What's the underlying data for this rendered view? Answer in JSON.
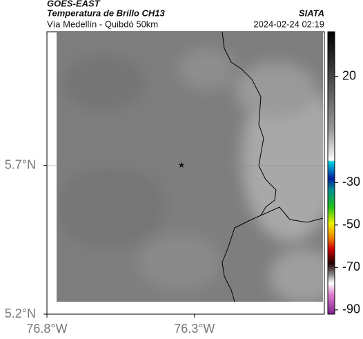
{
  "header": {
    "title": "GOES-EAST",
    "subtitle": "Temperatura de Brillo CH13",
    "region": "Vía Medellín - Quibdó 50km",
    "source": "SIATA",
    "datetime": "2024-02-24 02:19"
  },
  "map": {
    "xlim": [
      -76.8,
      -75.86
    ],
    "ylim": [
      5.2,
      6.15
    ],
    "xticks": [
      {
        "value": -76.8,
        "label": "76.8°W"
      },
      {
        "value": -76.3,
        "label": "76.3°W"
      }
    ],
    "yticks": [
      {
        "value": 5.7,
        "label": "5.7°N"
      },
      {
        "value": 5.2,
        "label": "5.2°N"
      }
    ]
  },
  "colorbar": {
    "range": [
      -92,
      41
    ],
    "ticks": [
      20,
      -30,
      -50,
      -70,
      -90
    ]
  }
}
